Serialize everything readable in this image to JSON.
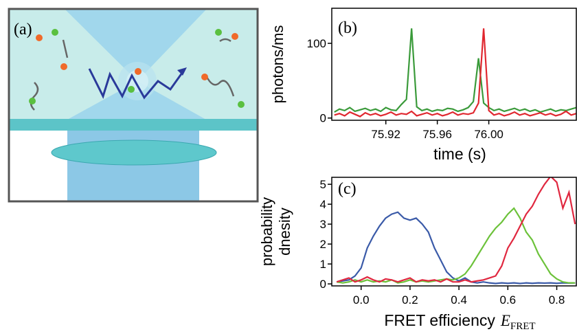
{
  "illustration": {
    "label": "(a)"
  },
  "chart_data": [
    {
      "type": "line",
      "label": "(b)",
      "xlabel": "time (s)",
      "ylabel": [
        "photons/ms"
      ],
      "xlim": [
        75.878,
        76.068
      ],
      "ylim": [
        -3,
        147
      ],
      "xticks": [
        {
          "value": 75.92,
          "label": "75.92"
        },
        {
          "value": 75.96,
          "label": "75.96"
        },
        {
          "value": 76.0,
          "label": "76.00"
        }
      ],
      "yticks": [
        0,
        100
      ],
      "x": [
        75.88,
        75.884,
        75.888,
        75.892,
        75.896,
        75.9,
        75.904,
        75.908,
        75.912,
        75.916,
        75.92,
        75.924,
        75.928,
        75.932,
        75.936,
        75.94,
        75.944,
        75.948,
        75.952,
        75.956,
        75.96,
        75.964,
        75.968,
        75.972,
        75.976,
        75.98,
        75.984,
        75.988,
        75.992,
        75.996,
        76.0,
        76.004,
        76.008,
        76.012,
        76.016,
        76.02,
        76.024,
        76.028,
        76.032,
        76.036,
        76.04,
        76.044,
        76.048,
        76.052,
        76.056,
        76.06,
        76.064,
        76.068
      ],
      "series": [
        {
          "color": "#3a9a3a",
          "values": [
            8,
            12,
            10,
            14,
            9,
            11,
            13,
            10,
            12,
            9,
            14,
            11,
            10,
            18,
            25,
            120,
            15,
            10,
            12,
            9,
            11,
            10,
            13,
            12,
            9,
            11,
            14,
            22,
            80,
            20,
            14,
            10,
            12,
            9,
            11,
            13,
            10,
            12,
            9,
            11,
            8,
            10,
            12,
            9,
            11,
            10,
            12,
            14
          ]
        },
        {
          "color": "#e0272f",
          "values": [
            4,
            6,
            3,
            8,
            5,
            2,
            7,
            4,
            6,
            3,
            5,
            8,
            4,
            6,
            5,
            9,
            3,
            5,
            7,
            4,
            6,
            3,
            5,
            8,
            4,
            6,
            5,
            7,
            20,
            120,
            10,
            4,
            6,
            3,
            5,
            8,
            4,
            6,
            3,
            5,
            7,
            4,
            6,
            3,
            5,
            9,
            4,
            6
          ]
        }
      ]
    },
    {
      "type": "line",
      "label": "(c)",
      "xlabel": "FRET efficiency",
      "xlabel_symbol": "E",
      "xlabel_subscript": "FRET",
      "ylabel": [
        "probability",
        "dnesity"
      ],
      "xlim": [
        -0.12,
        0.88
      ],
      "ylim": [
        -0.1,
        5.35
      ],
      "xticks": [
        {
          "value": 0,
          "label": "0.0"
        },
        0.2,
        0.4,
        0.6,
        0.8
      ],
      "yticks": [
        0,
        1,
        2,
        3,
        4,
        5
      ],
      "x": [
        -0.1,
        -0.075,
        -0.05,
        -0.025,
        0,
        0.025,
        0.05,
        0.075,
        0.1,
        0.125,
        0.15,
        0.175,
        0.2,
        0.225,
        0.25,
        0.275,
        0.3,
        0.325,
        0.35,
        0.375,
        0.4,
        0.425,
        0.45,
        0.475,
        0.5,
        0.525,
        0.55,
        0.575,
        0.6,
        0.625,
        0.65,
        0.675,
        0.7,
        0.725,
        0.75,
        0.775,
        0.8,
        0.825,
        0.85,
        0.875
      ],
      "series": [
        {
          "color": "#3a5aa8",
          "values": [
            0.1,
            0.15,
            0.2,
            0.4,
            0.8,
            1.8,
            2.4,
            2.9,
            3.3,
            3.5,
            3.6,
            3.3,
            3.2,
            3.3,
            3.0,
            2.6,
            1.8,
            1.2,
            0.6,
            0.3,
            0.15,
            0.3,
            0.1,
            0.05,
            0.1,
            0.05,
            0.02,
            0.05,
            0.03,
            0.05,
            0.02,
            0.05,
            0.03,
            0.05,
            0.04,
            0.05,
            0.03,
            0.05,
            0.04,
            0.05
          ]
        },
        {
          "color": "#6cc23a",
          "values": [
            0.1,
            0.05,
            0.1,
            0.2,
            0.1,
            0.2,
            0.1,
            0.15,
            0.1,
            0.2,
            0.05,
            0.1,
            0.2,
            0.1,
            0.15,
            0.1,
            0.15,
            0.2,
            0.25,
            0.2,
            0.3,
            0.5,
            0.9,
            1.4,
            1.9,
            2.4,
            2.8,
            3.1,
            3.5,
            3.8,
            3.3,
            2.6,
            2.2,
            1.5,
            1.0,
            0.5,
            0.25,
            0.1,
            0.05,
            0.05
          ]
        },
        {
          "color": "#e0273f",
          "values": [
            0.1,
            0.2,
            0.3,
            0.1,
            0.2,
            0.35,
            0.2,
            0.1,
            0.25,
            0.2,
            0.1,
            0.2,
            0.3,
            0.1,
            0.2,
            0.15,
            0.2,
            0.1,
            0.25,
            0.1,
            0.1,
            0.2,
            0.1,
            0.15,
            0.2,
            0.3,
            0.4,
            0.9,
            1.8,
            2.3,
            2.9,
            3.5,
            3.9,
            4.5,
            5.0,
            5.4,
            5.1,
            3.8,
            4.6,
            3.0
          ]
        }
      ]
    }
  ]
}
